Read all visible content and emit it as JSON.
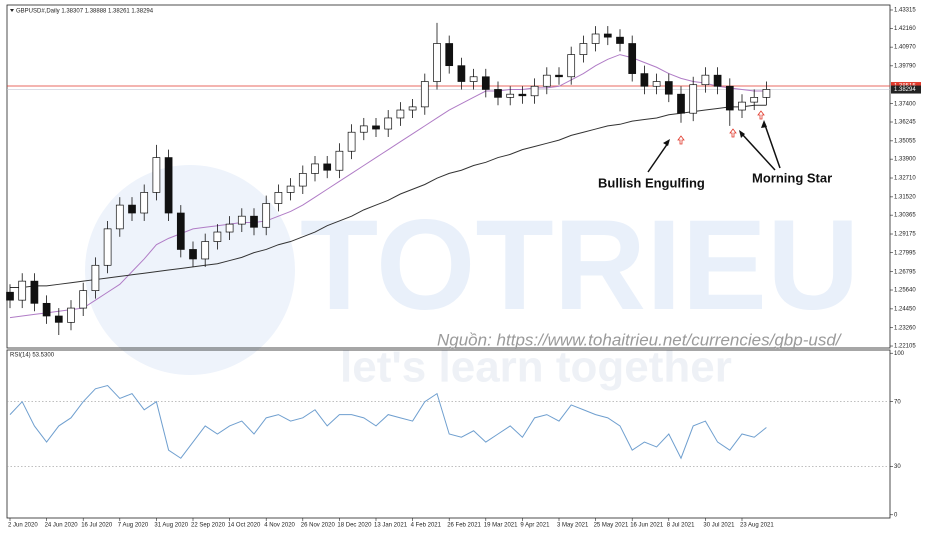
{
  "watermark": {
    "brand": "TOTRIEU",
    "slogan": "let's learn together"
  },
  "source": "Nguồn: https://www.tohaitrieu.net/currencies/gbp-usd/",
  "chart_data": [
    {
      "type": "candlestick",
      "title": "GBPUSD#,Daily 1.38307 1.38888 1.38261 1.38294",
      "categories": [
        "2 Jun 2020",
        null,
        null,
        "24 Jun 2020",
        null,
        null,
        "16 Jul 2020",
        null,
        null,
        "7 Aug 2020",
        null,
        null,
        "31 Aug 2020",
        null,
        null,
        "22 Sep 2020",
        null,
        null,
        "14 Oct 2020",
        null,
        null,
        "4 Nov 2020",
        null,
        null,
        "26 Nov 2020",
        null,
        null,
        "18 Dec 2020",
        null,
        null,
        "13 Jan 2021",
        null,
        null,
        "4 Feb 2021",
        null,
        null,
        "26 Feb 2021",
        null,
        null,
        "19 Mar 2021",
        null,
        null,
        "9 Apr 2021",
        null,
        null,
        "3 May 2021",
        null,
        null,
        "25 May 2021",
        null,
        null,
        "16 Jun 2021",
        null,
        null,
        "8 Jul 2021",
        null,
        null,
        "30 Jul 2021",
        null,
        null,
        "23 Aug 2021",
        null,
        null
      ],
      "open": [
        1.255,
        1.25,
        1.262,
        1.248,
        1.24,
        1.236,
        1.245,
        1.256,
        1.272,
        1.295,
        1.31,
        1.305,
        1.318,
        1.34,
        1.305,
        1.282,
        1.276,
        1.287,
        1.293,
        1.298,
        1.303,
        1.296,
        1.311,
        1.318,
        1.322,
        1.33,
        1.336,
        1.332,
        1.344,
        1.356,
        1.36,
        1.358,
        1.365,
        1.37,
        1.372,
        1.388,
        1.412,
        1.398,
        1.388,
        1.391,
        1.383,
        1.378,
        1.38,
        1.379,
        1.385,
        1.392,
        1.391,
        1.405,
        1.412,
        1.418,
        1.416,
        1.412,
        1.393,
        1.385,
        1.388,
        1.38,
        1.368,
        1.386,
        1.392,
        1.385,
        1.37,
        1.375,
        1.378
      ],
      "high": [
        1.26,
        1.267,
        1.267,
        1.253,
        1.245,
        1.25,
        1.261,
        1.277,
        1.3,
        1.315,
        1.315,
        1.323,
        1.348,
        1.345,
        1.31,
        1.287,
        1.292,
        1.298,
        1.303,
        1.308,
        1.308,
        1.316,
        1.323,
        1.327,
        1.335,
        1.341,
        1.341,
        1.349,
        1.361,
        1.365,
        1.365,
        1.37,
        1.375,
        1.377,
        1.393,
        1.425,
        1.417,
        1.403,
        1.396,
        1.396,
        1.388,
        1.385,
        1.385,
        1.39,
        1.397,
        1.397,
        1.41,
        1.417,
        1.423,
        1.423,
        1.421,
        1.417,
        1.398,
        1.393,
        1.393,
        1.385,
        1.391,
        1.397,
        1.397,
        1.39,
        1.38,
        1.383,
        1.388
      ],
      "low": [
        1.245,
        1.245,
        1.243,
        1.235,
        1.228,
        1.231,
        1.24,
        1.251,
        1.267,
        1.29,
        1.3,
        1.3,
        1.313,
        1.3,
        1.277,
        1.271,
        1.271,
        1.282,
        1.288,
        1.293,
        1.291,
        1.291,
        1.306,
        1.313,
        1.317,
        1.325,
        1.327,
        1.327,
        1.339,
        1.351,
        1.353,
        1.353,
        1.36,
        1.365,
        1.367,
        1.383,
        1.393,
        1.383,
        1.383,
        1.378,
        1.373,
        1.373,
        1.374,
        1.374,
        1.38,
        1.386,
        1.386,
        1.4,
        1.407,
        1.411,
        1.407,
        1.388,
        1.38,
        1.38,
        1.375,
        1.362,
        1.363,
        1.381,
        1.38,
        1.36,
        1.365,
        1.37,
        1.373
      ],
      "close": [
        1.25,
        1.262,
        1.248,
        1.24,
        1.236,
        1.245,
        1.256,
        1.272,
        1.295,
        1.31,
        1.305,
        1.318,
        1.34,
        1.305,
        1.282,
        1.276,
        1.287,
        1.293,
        1.298,
        1.303,
        1.296,
        1.311,
        1.318,
        1.322,
        1.33,
        1.336,
        1.332,
        1.344,
        1.356,
        1.36,
        1.358,
        1.365,
        1.37,
        1.372,
        1.388,
        1.412,
        1.398,
        1.388,
        1.391,
        1.383,
        1.378,
        1.38,
        1.379,
        1.385,
        1.392,
        1.391,
        1.405,
        1.412,
        1.418,
        1.416,
        1.412,
        1.393,
        1.385,
        1.388,
        1.38,
        1.368,
        1.386,
        1.392,
        1.385,
        1.37,
        1.375,
        1.378,
        1.383
      ],
      "moving_averages": [
        {
          "color": "#b07cc6",
          "values": [
            1.239,
            1.24,
            1.241,
            1.242,
            1.243,
            1.244,
            1.245,
            1.25,
            1.255,
            1.26,
            1.268,
            1.276,
            1.285,
            1.289,
            1.292,
            1.295,
            1.296,
            1.297,
            1.298,
            1.299,
            1.299,
            1.3,
            1.303,
            1.306,
            1.31,
            1.315,
            1.32,
            1.325,
            1.33,
            1.335,
            1.34,
            1.345,
            1.35,
            1.355,
            1.36,
            1.365,
            1.37,
            1.374,
            1.378,
            1.382,
            1.382,
            1.383,
            1.383,
            1.384,
            1.384,
            1.385,
            1.389,
            1.393,
            1.398,
            1.402,
            1.405,
            1.403,
            1.4,
            1.397,
            1.393,
            1.39,
            1.388,
            1.387,
            1.385,
            1.384,
            1.383,
            1.382,
            1.382
          ]
        },
        {
          "color": "#333333",
          "values": [
            1.258,
            1.258,
            1.259,
            1.259,
            1.26,
            1.261,
            1.262,
            1.263,
            1.264,
            1.265,
            1.266,
            1.267,
            1.268,
            1.269,
            1.27,
            1.271,
            1.272,
            1.273,
            1.275,
            1.277,
            1.28,
            1.282,
            1.285,
            1.287,
            1.29,
            1.293,
            1.297,
            1.3,
            1.303,
            1.307,
            1.31,
            1.313,
            1.317,
            1.32,
            1.323,
            1.327,
            1.33,
            1.332,
            1.335,
            1.337,
            1.34,
            1.342,
            1.345,
            1.347,
            1.349,
            1.351,
            1.354,
            1.356,
            1.358,
            1.36,
            1.361,
            1.363,
            1.364,
            1.365,
            1.367,
            1.368,
            1.369,
            1.37,
            1.371,
            1.372,
            1.372,
            1.373,
            1.373
          ]
        }
      ],
      "ylim": [
        1.2198,
        1.4363
      ],
      "yticks": [
        1.43315,
        {
          "value": 1.4216,
          "label": "1.42160"
        },
        {
          "value": 1.4097,
          "label": "1.40970"
        },
        {
          "value": 1.3979,
          "label": "1.39790"
        },
        {
          "value": 1.374,
          "label": "1.37400"
        },
        1.36245,
        1.35055,
        {
          "value": 1.339,
          "label": "1.33900"
        },
        {
          "value": 1.3271,
          "label": "1.32710"
        },
        {
          "value": 1.3152,
          "label": "1.31520"
        },
        1.30365,
        1.29175,
        1.27995,
        1.26795,
        {
          "value": 1.2564,
          "label": "1.25640"
        },
        {
          "value": 1.2445,
          "label": "1.24450"
        },
        {
          "value": 1.2326,
          "label": "1.23260"
        },
        1.22105
      ],
      "level_line": {
        "value": 1.38515,
        "color": "#e0392b"
      },
      "current_price": 1.38294,
      "annotations": [
        "Bullish Engulfing",
        "Morning Star"
      ]
    },
    {
      "type": "line",
      "title": "RSI(14) 53.5300",
      "values": [
        62,
        70,
        55,
        45,
        55,
        60,
        70,
        78,
        80,
        72,
        75,
        65,
        70,
        40,
        35,
        45,
        55,
        50,
        55,
        58,
        50,
        60,
        62,
        58,
        60,
        65,
        55,
        62,
        62,
        60,
        55,
        62,
        60,
        58,
        70,
        75,
        50,
        48,
        52,
        45,
        50,
        55,
        48,
        60,
        62,
        58,
        68,
        65,
        62,
        60,
        55,
        40,
        45,
        42,
        50,
        35,
        55,
        58,
        45,
        40,
        50,
        48,
        54
      ],
      "color": "#6f9fcf",
      "ylim": [
        -2,
        102
      ],
      "yticks": [
        100,
        70,
        30,
        0
      ],
      "dotted_levels": [
        70,
        30
      ]
    }
  ]
}
